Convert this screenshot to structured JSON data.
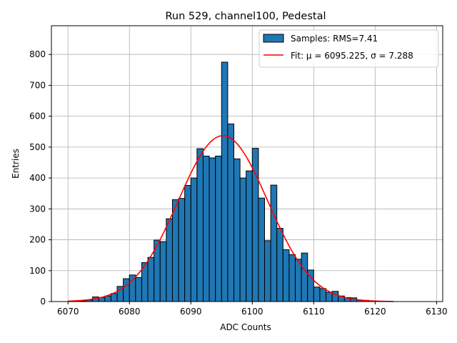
{
  "chart_data": {
    "type": "bar",
    "title": "Run 529, channel100, Pedestal",
    "xlabel": "ADC Counts",
    "ylabel": "Entries",
    "xlim": [
      6067.3,
      6131.0
    ],
    "ylim": [
      0,
      893
    ],
    "xticks": [
      6070,
      6080,
      6090,
      6100,
      6110,
      6120,
      6130
    ],
    "yticks": [
      0,
      100,
      200,
      300,
      400,
      500,
      600,
      700,
      800
    ],
    "grid": true,
    "legend_position": "top-right",
    "bin_width": 1,
    "bin_start": 6072,
    "bin_values": [
      2,
      5,
      15,
      13,
      18,
      26,
      49,
      74,
      86,
      78,
      126,
      143,
      199,
      194,
      268,
      330,
      334,
      376,
      400,
      495,
      471,
      465,
      471,
      775,
      575,
      462,
      400,
      423,
      496,
      335,
      197,
      377,
      237,
      168,
      152,
      137,
      157,
      102,
      47,
      42,
      30,
      33,
      18,
      13,
      12,
      5,
      4
    ],
    "series": [
      {
        "name": "Samples: RMS=7.41",
        "kind": "histogram",
        "color": "#1f77b4",
        "edge_color": "#000000"
      },
      {
        "name": "Fit: μ = 6095.225, σ = 7.288",
        "kind": "gaussian-fit",
        "color": "#ff0000",
        "mu": 6095.225,
        "sigma": 7.288,
        "amplitude": 537,
        "x_range": [
          6070,
          6123
        ]
      }
    ]
  }
}
